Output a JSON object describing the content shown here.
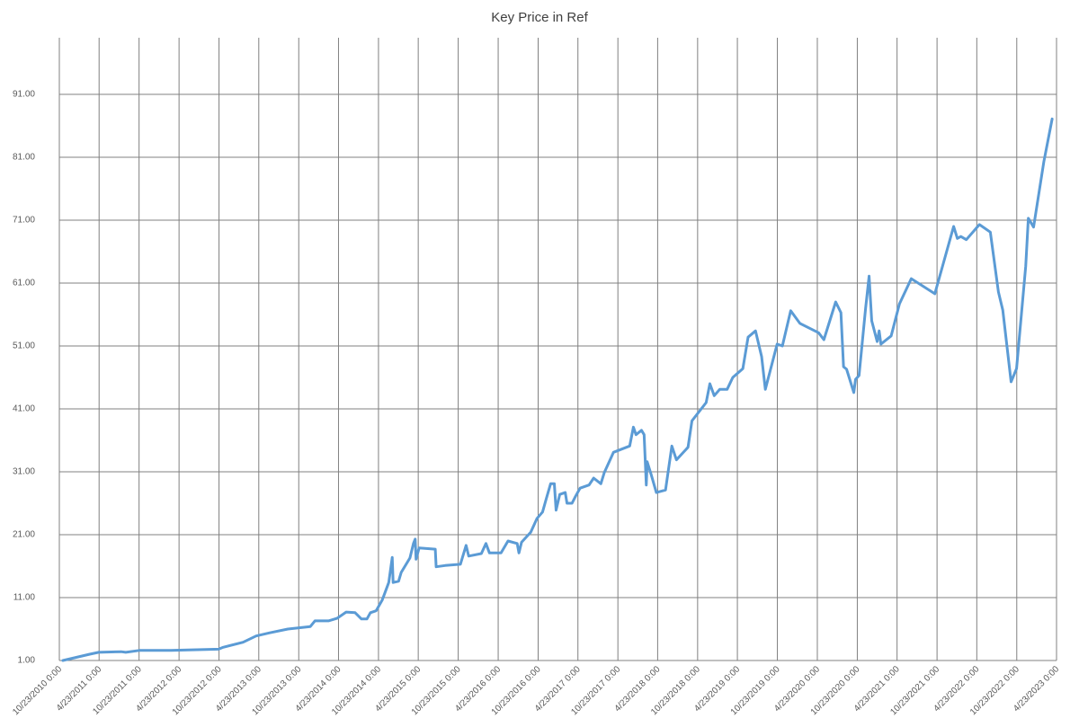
{
  "chart_data": {
    "type": "line",
    "title": "Key Price in Ref",
    "color": "#5b9bd5",
    "grid": true,
    "x": [
      "2010-11-08",
      "2011-03-11",
      "2011-04-21",
      "2011-08-02",
      "2011-08-23",
      "2011-10-24",
      "2012-03-17",
      "2012-10-21",
      "2012-11-11",
      "2013-02-10",
      "2013-04-11",
      "2013-06-12",
      "2013-09-03",
      "2013-12-15",
      "2014-01-05",
      "2014-03-08",
      "2014-04-16",
      "2014-05-28",
      "2014-07-08",
      "2014-08-06",
      "2014-08-31",
      "2014-09-16",
      "2014-10-12",
      "2014-11-09",
      "2014-12-09",
      "2014-12-25",
      "2014-12-29",
      "2015-01-23",
      "2015-02-04",
      "2015-03-16",
      "2015-04-01",
      "2015-04-09",
      "2015-04-13",
      "2015-04-27",
      "2015-07-10",
      "2015-07-14",
      "2015-08-24",
      "2015-11-02",
      "2015-11-28",
      "2015-12-10",
      "2016-02-06",
      "2016-02-27",
      "2016-03-14",
      "2016-05-06",
      "2016-06-07",
      "2016-07-19",
      "2016-07-27",
      "2016-08-08",
      "2016-09-19",
      "2016-10-18",
      "2016-11-12",
      "2016-11-29",
      "2016-12-19",
      "2017-01-05",
      "2017-01-13",
      "2017-01-30",
      "2017-02-24",
      "2017-03-04",
      "2017-03-27",
      "2017-04-12",
      "2017-05-03",
      "2017-06-13",
      "2017-07-04",
      "2017-08-06",
      "2017-08-22",
      "2017-10-03",
      "2017-12-16",
      "2018-01-02",
      "2018-01-14",
      "2018-02-08",
      "2018-02-20",
      "2018-03-02",
      "2018-03-06",
      "2018-03-24",
      "2018-04-17",
      "2018-05-29",
      "2018-06-27",
      "2018-07-18",
      "2018-09-09",
      "2018-09-27",
      "2018-12-01",
      "2018-12-18",
      "2019-01-07",
      "2019-02-01",
      "2019-03-07",
      "2019-04-02",
      "2019-05-18",
      "2019-06-11",
      "2019-07-15",
      "2019-08-12",
      "2019-08-29",
      "2019-10-22",
      "2019-11-15",
      "2019-12-23",
      "2020-02-03",
      "2020-04-29",
      "2020-05-23",
      "2020-07-16",
      "2020-08-09",
      "2020-08-21",
      "2020-09-04",
      "2020-10-07",
      "2020-10-15",
      "2020-10-31",
      "2020-11-30",
      "2020-12-16",
      "2020-12-28",
      "2021-01-22",
      "2021-01-31",
      "2021-02-08",
      "2021-03-27",
      "2021-05-04",
      "2021-06-27",
      "2021-10-13",
      "2022-01-07",
      "2022-01-24",
      "2022-02-09",
      "2022-03-06",
      "2022-05-05",
      "2022-06-24",
      "2022-07-31",
      "2022-08-20",
      "2022-09-27",
      "2022-10-22",
      "2022-12-03",
      "2022-12-15",
      "2023-01-08",
      "2023-02-24",
      "2023-04-03"
    ],
    "values": [
      1.0,
      2.0,
      2.3,
      2.4,
      2.3,
      2.6,
      2.6,
      2.8,
      3.1,
      3.9,
      4.9,
      5.4,
      6.0,
      6.4,
      7.3,
      7.3,
      7.7,
      8.7,
      8.6,
      7.6,
      7.6,
      8.6,
      8.9,
      10.6,
      13.4,
      17.4,
      13.4,
      13.6,
      15.0,
      17.3,
      19.6,
      20.3,
      17.1,
      18.9,
      18.7,
      15.9,
      16.1,
      16.3,
      19.3,
      17.6,
      18.0,
      19.6,
      18.1,
      18.1,
      20.0,
      19.6,
      18.1,
      19.8,
      21.4,
      23.6,
      24.6,
      26.7,
      29.1,
      29.1,
      24.9,
      27.4,
      27.7,
      26.0,
      26.0,
      27.1,
      28.4,
      28.9,
      30.0,
      29.1,
      30.9,
      34.1,
      35.1,
      38.1,
      36.9,
      37.6,
      36.9,
      28.9,
      32.6,
      30.6,
      27.7,
      28.1,
      35.1,
      32.9,
      34.9,
      39.1,
      42.0,
      45.0,
      43.1,
      44.1,
      44.1,
      46.0,
      47.4,
      52.4,
      53.4,
      49.3,
      44.1,
      51.3,
      51.0,
      56.6,
      54.6,
      53.1,
      52.0,
      58.0,
      56.3,
      47.7,
      47.3,
      43.6,
      45.7,
      46.3,
      57.0,
      62.1,
      55.0,
      51.7,
      53.4,
      51.3,
      52.6,
      57.7,
      61.7,
      59.3,
      70.0,
      68.1,
      68.4,
      67.9,
      70.3,
      69.1,
      59.6,
      56.7,
      45.3,
      47.4,
      63.7,
      71.3,
      69.9,
      80.3,
      87.1
    ],
    "xlim": [
      "2010-10-23",
      "2023-04-23"
    ],
    "xticks": [
      {
        "value": "2010-10-23",
        "label": "10/23/2010 0:00"
      },
      {
        "value": "2011-04-23",
        "label": "4/23/2011 0:00"
      },
      {
        "value": "2011-10-23",
        "label": "10/23/2011 0:00"
      },
      {
        "value": "2012-04-23",
        "label": "4/23/2012 0:00"
      },
      {
        "value": "2012-10-23",
        "label": "10/23/2012 0:00"
      },
      {
        "value": "2013-04-23",
        "label": "4/23/2013 0:00"
      },
      {
        "value": "2013-10-23",
        "label": "10/23/2013 0:00"
      },
      {
        "value": "2014-04-23",
        "label": "4/23/2014 0:00"
      },
      {
        "value": "2014-10-23",
        "label": "10/23/2014 0:00"
      },
      {
        "value": "2015-04-23",
        "label": "4/23/2015 0:00"
      },
      {
        "value": "2015-10-23",
        "label": "10/23/2015 0:00"
      },
      {
        "value": "2016-04-23",
        "label": "4/23/2016 0:00"
      },
      {
        "value": "2016-10-23",
        "label": "10/23/2016 0:00"
      },
      {
        "value": "2017-04-23",
        "label": "4/23/2017 0:00"
      },
      {
        "value": "2017-10-23",
        "label": "10/23/2017 0:00"
      },
      {
        "value": "2018-04-23",
        "label": "4/23/2018 0:00"
      },
      {
        "value": "2018-10-23",
        "label": "10/23/2018 0:00"
      },
      {
        "value": "2019-04-23",
        "label": "4/23/2019 0:00"
      },
      {
        "value": "2019-10-23",
        "label": "10/23/2019 0:00"
      },
      {
        "value": "2020-04-23",
        "label": "4/23/2020 0:00"
      },
      {
        "value": "2020-10-23",
        "label": "10/23/2020 0:00"
      },
      {
        "value": "2021-04-23",
        "label": "4/23/2021 0:00"
      },
      {
        "value": "2021-10-23",
        "label": "10/23/2021 0:00"
      },
      {
        "value": "2022-04-23",
        "label": "4/23/2022 0:00"
      },
      {
        "value": "2022-10-23",
        "label": "10/23/2022 0:00"
      },
      {
        "value": "2023-04-23",
        "label": "4/23/2023 0:00"
      }
    ],
    "ylim": [
      1,
      100
    ],
    "yticks": [
      {
        "value": 1,
        "label": "1.00"
      },
      {
        "value": 11,
        "label": "11.00"
      },
      {
        "value": 21,
        "label": "21.00"
      },
      {
        "value": 31,
        "label": "31.00"
      },
      {
        "value": 41,
        "label": "41.00"
      },
      {
        "value": 51,
        "label": "51.00"
      },
      {
        "value": 61,
        "label": "61.00"
      },
      {
        "value": 71,
        "label": "71.00"
      },
      {
        "value": 81,
        "label": "81.00"
      },
      {
        "value": 91,
        "label": "91.00"
      }
    ]
  }
}
